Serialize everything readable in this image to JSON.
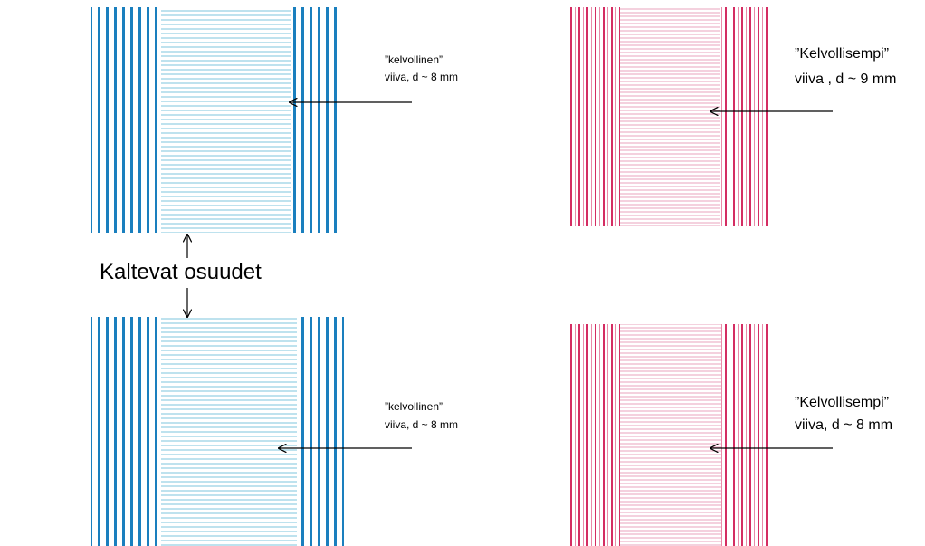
{
  "annotations": [
    {
      "line1": "”kelvollinen”",
      "line2": "viiva, d ~ 8 mm"
    },
    {
      "line1": "”Kelvollisempi”",
      "line2": "viiva , d ~ 9 mm"
    },
    {
      "line1": "”kelvollinen”",
      "line2": "viiva, d ~ 8 mm"
    },
    {
      "line1": "”Kelvollisempi”",
      "line2": "viiva, d ~ 8 mm"
    }
  ],
  "center_label": "Kaltevat osuudet"
}
